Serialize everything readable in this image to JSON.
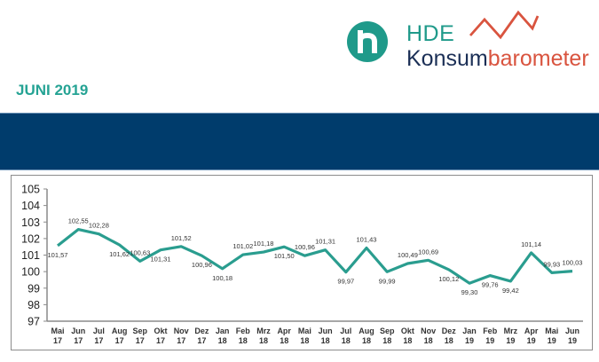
{
  "header": {
    "logo": {
      "brand_line1": "HDE",
      "brand_line2_part1": "Konsum",
      "brand_line2_part2": "barometer",
      "icon": "hde-h-circle-icon",
      "zigzag_icon": "trend-zigzag-icon",
      "colors": {
        "teal": "#1f9a8a",
        "navy": "#1b2f56",
        "red": "#d9543f"
      }
    },
    "month_title": "JUNI 2019",
    "banner_color": "#003c6c"
  },
  "chart_data": {
    "type": "line",
    "title": "",
    "xlabel": "",
    "ylabel": "",
    "ylim": [
      97,
      105
    ],
    "yticks": [
      97,
      98,
      99,
      100,
      101,
      102,
      103,
      104,
      105
    ],
    "grid": false,
    "legend": null,
    "line_color": "#2a9d8f",
    "categories": [
      [
        "Mai",
        "17"
      ],
      [
        "Jun",
        "17"
      ],
      [
        "Jul",
        "17"
      ],
      [
        "Aug",
        "17"
      ],
      [
        "Sep",
        "17"
      ],
      [
        "Okt",
        "17"
      ],
      [
        "Nov",
        "17"
      ],
      [
        "Dez",
        "17"
      ],
      [
        "Jan",
        "18"
      ],
      [
        "Feb",
        "18"
      ],
      [
        "Mrz",
        "18"
      ],
      [
        "Apr",
        "18"
      ],
      [
        "Mai",
        "18"
      ],
      [
        "Jun",
        "18"
      ],
      [
        "Jul",
        "18"
      ],
      [
        "Aug",
        "18"
      ],
      [
        "Sep",
        "18"
      ],
      [
        "Okt",
        "18"
      ],
      [
        "Nov",
        "18"
      ],
      [
        "Dez",
        "18"
      ],
      [
        "Jan",
        "19"
      ],
      [
        "Feb",
        "19"
      ],
      [
        "Mrz",
        "19"
      ],
      [
        "Apr",
        "19"
      ],
      [
        "Mai",
        "19"
      ],
      [
        "Jun",
        "19"
      ]
    ],
    "values": [
      101.57,
      102.55,
      102.28,
      101.62,
      100.63,
      101.31,
      101.52,
      100.96,
      100.18,
      101.02,
      101.18,
      101.5,
      100.96,
      101.31,
      99.97,
      101.43,
      99.99,
      100.49,
      100.69,
      100.12,
      99.3,
      99.76,
      99.42,
      101.14,
      99.93,
      100.03
    ],
    "data_labels": [
      "101,57",
      "102,55",
      "102,28",
      "101,62",
      "100,63",
      "101,31",
      "101,52",
      "100,96",
      "100,18",
      "101,02",
      "101,18",
      "101,50",
      "100,96",
      "101,31",
      "99,97",
      "101,43",
      "99,99",
      "100,49",
      "100,69",
      "100,12",
      "99,30",
      "99,76",
      "99,42",
      "101,14",
      "99,93",
      "100,03"
    ],
    "label_positions": [
      "below",
      "above",
      "above",
      "below",
      "above",
      "below",
      "above",
      "below",
      "below",
      "above",
      "above",
      "below",
      "above",
      "above",
      "below",
      "above",
      "below",
      "above",
      "above",
      "below",
      "below",
      "below",
      "below",
      "above",
      "above",
      "above"
    ]
  }
}
